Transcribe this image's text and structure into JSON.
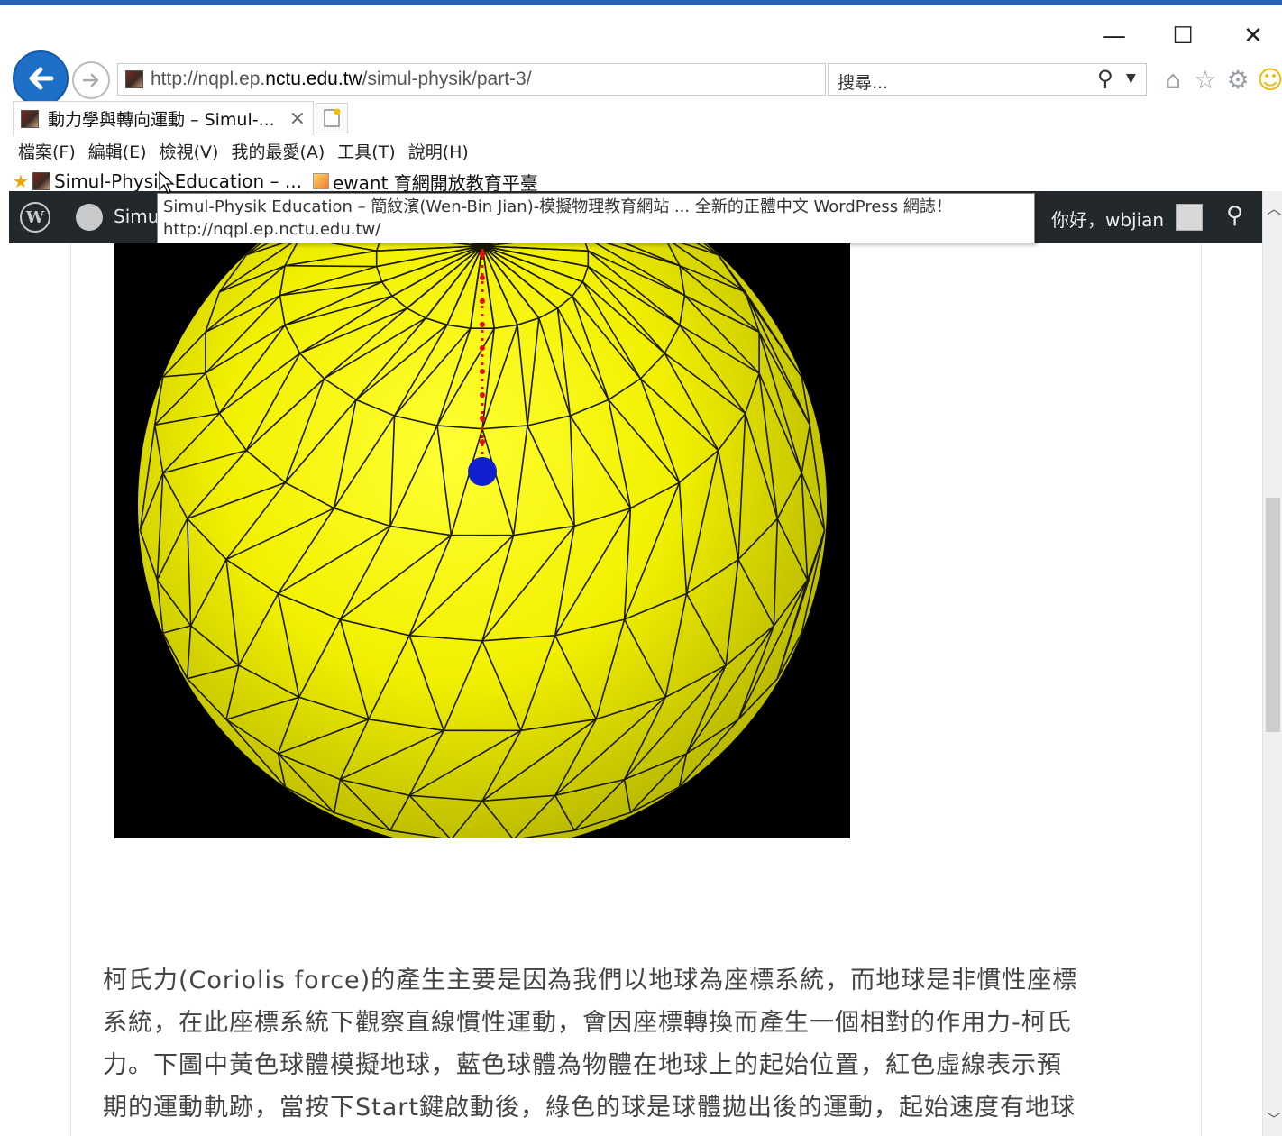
{
  "window": {
    "minimize_glyph": "—",
    "maximize_glyph": "☐",
    "close_glyph": "✕"
  },
  "address": {
    "url_prefix": "http://nqpl.ep.",
    "url_domain": "nctu.edu.tw",
    "url_path": "/simul-physik/part-3/"
  },
  "search": {
    "placeholder": "搜尋..."
  },
  "toolbar_icons": [
    "home-icon",
    "favorites-star-icon",
    "settings-gear-icon",
    "feedback-smiley-icon"
  ],
  "tab": {
    "title": "動力學與轉向運動 – Simul-...",
    "close": "×"
  },
  "menu": {
    "items": [
      "檔案(F)",
      "編輯(E)",
      "檢視(V)",
      "我的最愛(A)",
      "工具(T)",
      "說明(H)"
    ]
  },
  "favorites": {
    "items": [
      "Simul-Physik Education – ...",
      "ewant 育網開放教育平臺"
    ]
  },
  "wp_admin": {
    "site_label": "Simu",
    "greeting": "你好，wbjian"
  },
  "tooltip": {
    "line1": "Simul-Physik Education – 簡紋濱(Wen-Bin Jian)-模擬物理教育網站 ... 全新的正體中文 WordPress 網誌！",
    "line2": "http://nqpl.ep.nctu.edu.tw/"
  },
  "article": {
    "lines": [
      "柯氏力(Coriolis force)的產生主要是因為我們以地球為座標系統，而地球是非慣性座標",
      "系統，在此座標系統下觀察直線慣性運動，會因座標轉換而產生一個相對的作用力-柯氏",
      "力。下圖中黃色球體模擬地球，藍色球體為物體在地球上的起始位置，紅色虛線表示預",
      "期的運動軌跡，當按下Start鍵啟動後，綠色的球是球體拋出後的運動，起始速度有地球"
    ]
  },
  "colors": {
    "sphere": "#f2f000",
    "sphere_highlight": "#ffff33",
    "sphere_shade": "#b8b800",
    "wire": "#1a1a00",
    "trajectory": "#e01010",
    "start_ball": "#1020d0",
    "canvas_bg": "#000000",
    "chrome_accent": "#1e6fc8",
    "wp_bar": "#23282d"
  }
}
